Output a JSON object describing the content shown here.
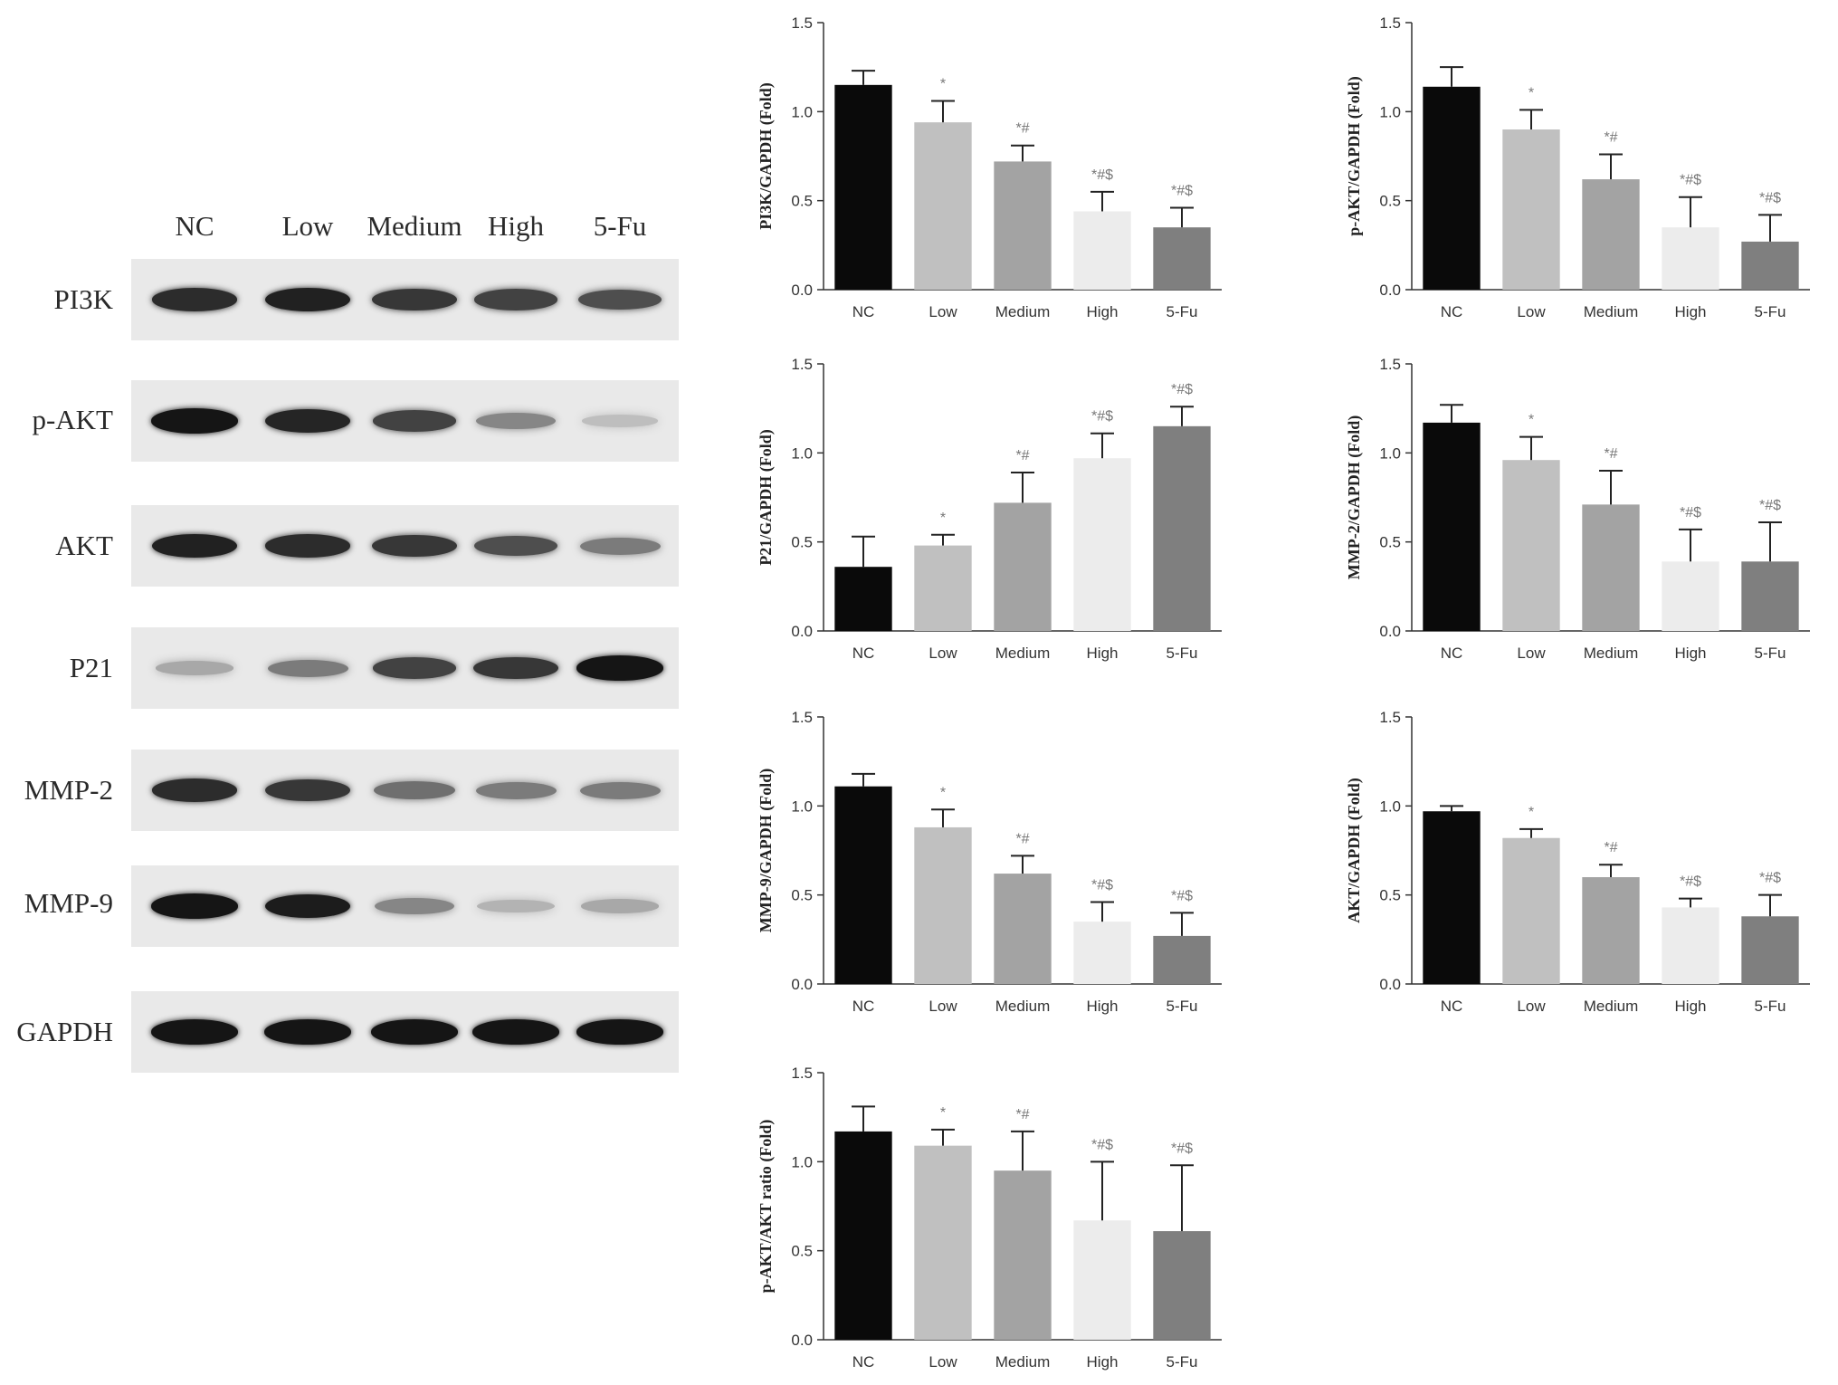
{
  "blot": {
    "lanes": [
      "NC",
      "Low",
      "Medium",
      "High",
      "5-Fu"
    ],
    "rows": [
      {
        "label": "PI3K",
        "intensity": [
          0.85,
          0.9,
          0.8,
          0.75,
          0.7
        ]
      },
      {
        "label": "p-AKT",
        "intensity": [
          0.95,
          0.88,
          0.75,
          0.45,
          0.2
        ]
      },
      {
        "label": "AKT",
        "intensity": [
          0.9,
          0.85,
          0.8,
          0.7,
          0.5
        ]
      },
      {
        "label": "P21",
        "intensity": [
          0.3,
          0.5,
          0.75,
          0.8,
          0.95
        ]
      },
      {
        "label": "MMP-2",
        "intensity": [
          0.85,
          0.8,
          0.55,
          0.5,
          0.5
        ]
      },
      {
        "label": "MMP-9",
        "intensity": [
          0.95,
          0.92,
          0.45,
          0.25,
          0.3
        ]
      },
      {
        "label": "GAPDH",
        "intensity": [
          0.95,
          0.95,
          0.95,
          0.95,
          0.95
        ]
      }
    ]
  },
  "chart_data": [
    {
      "type": "bar",
      "id": "pi3k",
      "ylabel": "PI3K/GAPDH (Fold)",
      "categories": [
        "NC",
        "Low",
        "Medium",
        "High",
        "5-Fu"
      ],
      "values": [
        1.15,
        0.94,
        0.72,
        0.44,
        0.35
      ],
      "errors": [
        0.08,
        0.12,
        0.09,
        0.11,
        0.11
      ],
      "marks": [
        "",
        "*",
        "*#",
        "*#$",
        "*#$"
      ],
      "ylim": [
        0,
        1.5
      ],
      "yticks": [
        "0.0",
        "0.5",
        "1.0",
        "1.5"
      ],
      "bar_colors": [
        "#0a0a0a",
        "#c0c0c0",
        "#a3a3a3",
        "#ececec",
        "#7f7f7f"
      ]
    },
    {
      "type": "bar",
      "id": "pakt",
      "ylabel": "p-AKT/GAPDH (Fold)",
      "categories": [
        "NC",
        "Low",
        "Medium",
        "High",
        "5-Fu"
      ],
      "values": [
        1.14,
        0.9,
        0.62,
        0.35,
        0.27
      ],
      "errors": [
        0.11,
        0.11,
        0.14,
        0.17,
        0.15
      ],
      "marks": [
        "",
        "*",
        "*#",
        "*#$",
        "*#$"
      ],
      "ylim": [
        0,
        1.5
      ],
      "yticks": [
        "0.0",
        "0.5",
        "1.0",
        "1.5"
      ],
      "bar_colors": [
        "#0a0a0a",
        "#c0c0c0",
        "#a3a3a3",
        "#ececec",
        "#7f7f7f"
      ]
    },
    {
      "type": "bar",
      "id": "p21",
      "ylabel": "P21/GAPDH (Fold)",
      "categories": [
        "NC",
        "Low",
        "Medium",
        "High",
        "5-Fu"
      ],
      "values": [
        0.36,
        0.48,
        0.72,
        0.97,
        1.15
      ],
      "errors": [
        0.17,
        0.06,
        0.17,
        0.14,
        0.11
      ],
      "marks": [
        "",
        "*",
        "*#",
        "*#$",
        "*#$"
      ],
      "ylim": [
        0,
        1.5
      ],
      "yticks": [
        "0.0",
        "0.5",
        "1.0",
        "1.5"
      ],
      "bar_colors": [
        "#0a0a0a",
        "#c0c0c0",
        "#a3a3a3",
        "#ececec",
        "#7f7f7f"
      ]
    },
    {
      "type": "bar",
      "id": "mmp2",
      "ylabel": "MMP-2/GAPDH (Fold)",
      "categories": [
        "NC",
        "Low",
        "Medium",
        "High",
        "5-Fu"
      ],
      "values": [
        1.17,
        0.96,
        0.71,
        0.39,
        0.39
      ],
      "errors": [
        0.1,
        0.13,
        0.19,
        0.18,
        0.22
      ],
      "marks": [
        "",
        "*",
        "*#",
        "*#$",
        "*#$"
      ],
      "ylim": [
        0,
        1.5
      ],
      "yticks": [
        "0.0",
        "0.5",
        "1.0",
        "1.5"
      ],
      "bar_colors": [
        "#0a0a0a",
        "#c0c0c0",
        "#a3a3a3",
        "#ececec",
        "#7f7f7f"
      ]
    },
    {
      "type": "bar",
      "id": "mmp9",
      "ylabel": "MMP-9/GAPDH (Fold)",
      "categories": [
        "NC",
        "Low",
        "Medium",
        "High",
        "5-Fu"
      ],
      "values": [
        1.11,
        0.88,
        0.62,
        0.35,
        0.27
      ],
      "errors": [
        0.07,
        0.1,
        0.1,
        0.11,
        0.13
      ],
      "marks": [
        "",
        "*",
        "*#",
        "*#$",
        "*#$"
      ],
      "ylim": [
        0,
        1.5
      ],
      "yticks": [
        "0.0",
        "0.5",
        "1.0",
        "1.5"
      ],
      "bar_colors": [
        "#0a0a0a",
        "#c0c0c0",
        "#a3a3a3",
        "#ececec",
        "#7f7f7f"
      ]
    },
    {
      "type": "bar",
      "id": "akt",
      "ylabel": "AKT/GAPDH (Fold)",
      "categories": [
        "NC",
        "Low",
        "Medium",
        "High",
        "5-Fu"
      ],
      "values": [
        0.97,
        0.82,
        0.6,
        0.43,
        0.38
      ],
      "errors": [
        0.03,
        0.05,
        0.07,
        0.05,
        0.12
      ],
      "marks": [
        "",
        "*",
        "*#",
        "*#$",
        "*#$"
      ],
      "ylim": [
        0,
        1.5
      ],
      "yticks": [
        "0.0",
        "0.5",
        "1.0",
        "1.5"
      ],
      "bar_colors": [
        "#0a0a0a",
        "#c0c0c0",
        "#a3a3a3",
        "#ececec",
        "#7f7f7f"
      ]
    },
    {
      "type": "bar",
      "id": "ratio",
      "ylabel": "p-AKT/AKT ratio (Fold)",
      "categories": [
        "NC",
        "Low",
        "Medium",
        "High",
        "5-Fu"
      ],
      "values": [
        1.17,
        1.09,
        0.95,
        0.67,
        0.61
      ],
      "errors": [
        0.14,
        0.09,
        0.22,
        0.33,
        0.37
      ],
      "marks": [
        "",
        "*",
        "*#",
        "*#$",
        "*#$"
      ],
      "ylim": [
        0,
        1.5
      ],
      "yticks": [
        "0.0",
        "0.5",
        "1.0",
        "1.5"
      ],
      "bar_colors": [
        "#0a0a0a",
        "#c0c0c0",
        "#a3a3a3",
        "#ececec",
        "#7f7f7f"
      ]
    }
  ]
}
